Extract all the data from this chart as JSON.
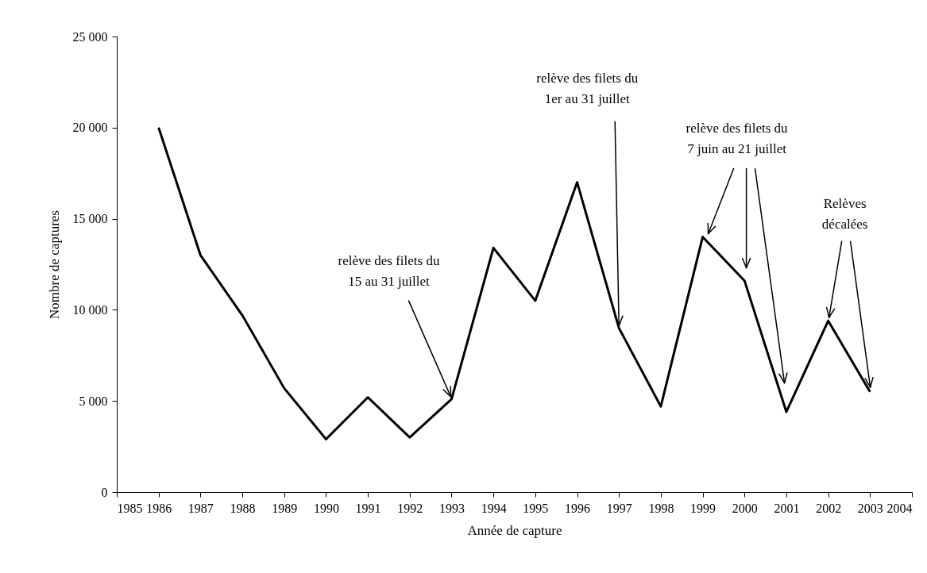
{
  "chart_data": {
    "type": "line",
    "xlabel": "Année de capture",
    "ylabel": "Nombre de captures",
    "x": [
      1986,
      1987,
      1988,
      1989,
      1990,
      1991,
      1992,
      1993,
      1994,
      1995,
      1996,
      1997,
      1998,
      1999,
      2000,
      2001,
      2002,
      2003
    ],
    "series": [
      {
        "color": "#000000",
        "values": [
          20000,
          13000,
          9700,
          5700,
          2900,
          5200,
          3000,
          5100,
          13400,
          10500,
          17000,
          9000,
          4700,
          14000,
          11600,
          4400,
          9400,
          5500
        ]
      }
    ],
    "xlim": [
      1985,
      2004
    ],
    "xticks": [
      1985,
      1986,
      1987,
      1988,
      1989,
      1990,
      1991,
      1992,
      1993,
      1994,
      1995,
      1996,
      1997,
      1998,
      1999,
      2000,
      2001,
      2002,
      2003,
      2004
    ],
    "ylim": [
      0,
      25000
    ],
    "yticks": [
      0,
      {
        "value": 5000,
        "label": "5 000"
      },
      {
        "value": 10000,
        "label": "10 000"
      },
      {
        "value": 15000,
        "label": "15 000"
      },
      {
        "value": 20000,
        "label": "20 000"
      },
      {
        "value": 25000,
        "label": "25 000"
      }
    ],
    "grid": false,
    "legend": false,
    "marker": "none",
    "line_style": "solid",
    "annotations": [
      {
        "text": "relève des filets du\n15 au 31 juillet",
        "x": 1993,
        "y": 5100
      },
      {
        "text": "relève des filets du\n1er au 31 juillet",
        "x": 1997,
        "y": 9000
      },
      {
        "text": "relève des filets du\n7 juin au 21 juillet",
        "x": 1999,
        "y": 14000
      },
      {
        "text": "Relèves\ndécalées",
        "x": 2002,
        "y": 9400
      }
    ]
  }
}
